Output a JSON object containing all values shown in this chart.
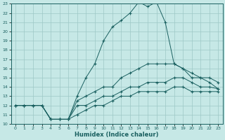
{
  "xlabel": "Humidex (Indice chaleur)",
  "xlim": [
    0,
    23
  ],
  "ylim": [
    10,
    23
  ],
  "xticks": [
    0,
    1,
    2,
    3,
    4,
    5,
    6,
    7,
    8,
    9,
    10,
    11,
    12,
    13,
    14,
    15,
    16,
    17,
    18,
    19,
    20,
    21,
    22,
    23
  ],
  "yticks": [
    10,
    11,
    12,
    13,
    14,
    15,
    16,
    17,
    18,
    19,
    20,
    21,
    22,
    23
  ],
  "bg_color": "#c6e8e6",
  "grid_color": "#9dc8c5",
  "line_color": "#1a6060",
  "lines": [
    {
      "x": [
        0,
        1,
        2,
        3,
        4,
        5,
        6,
        7,
        8,
        9,
        10,
        11,
        12,
        13,
        14,
        15,
        16,
        17,
        18,
        19,
        20,
        21,
        22,
        23
      ],
      "y": [
        12,
        12,
        12,
        12,
        10.5,
        10.5,
        10.5,
        11,
        11.5,
        12,
        12,
        12.5,
        13,
        13,
        13.5,
        13.5,
        13.5,
        13.5,
        14,
        14,
        13.5,
        13.5,
        13.5,
        13.5
      ]
    },
    {
      "x": [
        0,
        1,
        2,
        3,
        4,
        5,
        6,
        7,
        8,
        9,
        10,
        11,
        12,
        13,
        14,
        15,
        16,
        17,
        18,
        19,
        20,
        21,
        22,
        23
      ],
      "y": [
        12,
        12,
        12,
        12,
        10.5,
        10.5,
        10.5,
        12,
        12,
        12.5,
        13,
        13,
        13.5,
        14,
        14,
        14.5,
        14.5,
        14.5,
        15,
        15,
        14.5,
        14,
        14,
        13.8
      ]
    },
    {
      "x": [
        0,
        1,
        2,
        3,
        4,
        5,
        6,
        7,
        8,
        9,
        10,
        11,
        12,
        13,
        14,
        15,
        16,
        17,
        18,
        19,
        20,
        21,
        22,
        23
      ],
      "y": [
        12,
        12,
        12,
        12,
        10.5,
        10.5,
        10.5,
        12.5,
        13,
        13.5,
        14,
        14,
        15,
        15.5,
        16,
        16.5,
        16.5,
        16.5,
        16.5,
        16,
        15.5,
        15,
        15,
        14.5
      ]
    },
    {
      "x": [
        0,
        1,
        2,
        3,
        4,
        5,
        6,
        7,
        8,
        9,
        10,
        11,
        12,
        13,
        14,
        15,
        16,
        17,
        18,
        19,
        20,
        21,
        22,
        23
      ],
      "y": [
        12,
        12,
        12,
        12,
        10.5,
        10.5,
        10.5,
        13,
        15,
        16.5,
        19,
        20.5,
        21.2,
        22,
        23.2,
        22.7,
        23.2,
        21,
        16.5,
        16,
        15,
        15,
        14.5,
        13.8
      ]
    }
  ]
}
